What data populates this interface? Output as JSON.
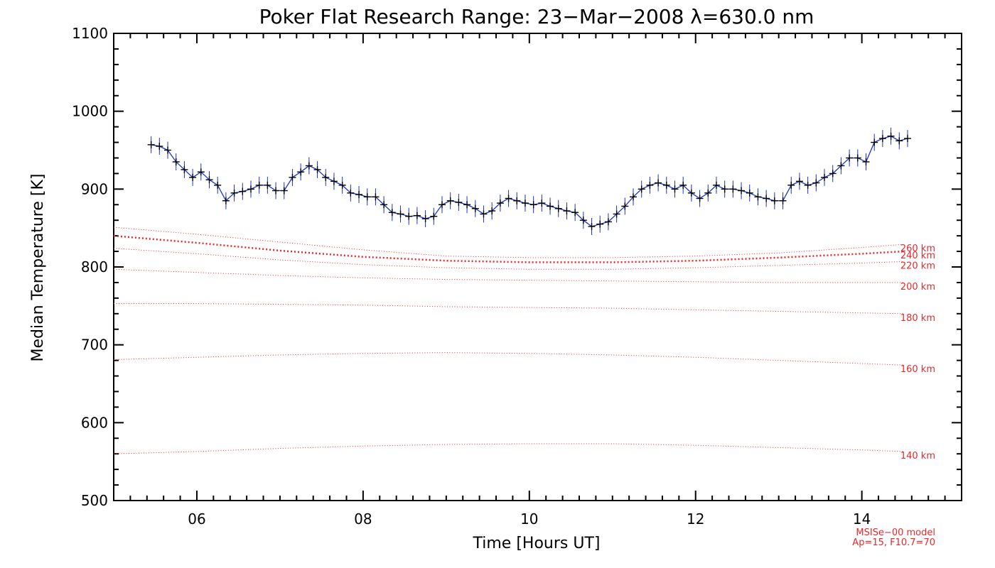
{
  "chart_data": {
    "type": "line",
    "title": "Poker Flat Research Range: 23−Mar−2008 λ=630.0 nm",
    "xlabel": "Time [Hours UT]",
    "ylabel": "Median Temperature [K]",
    "xlim": [
      5.0,
      15.2
    ],
    "ylim": [
      500,
      1100
    ],
    "x_ticks": [
      6,
      8,
      10,
      12,
      14
    ],
    "x_tick_labels": [
      "06",
      "08",
      "10",
      "12",
      "14"
    ],
    "y_ticks": [
      500,
      600,
      700,
      800,
      900,
      1000,
      1100
    ],
    "y_tick_labels": [
      "500",
      "600",
      "700",
      "800",
      "900",
      "1000",
      "1100"
    ],
    "grid": false,
    "colors": {
      "measured_line": "#1a33cc",
      "markers": "#000000",
      "model": "#e8282a",
      "axes": "#000000"
    },
    "measured": {
      "x": [
        5.45,
        5.55,
        5.65,
        5.75,
        5.85,
        5.95,
        6.05,
        6.15,
        6.25,
        6.35,
        6.45,
        6.55,
        6.65,
        6.75,
        6.85,
        6.95,
        7.05,
        7.15,
        7.25,
        7.35,
        7.45,
        7.55,
        7.65,
        7.75,
        7.85,
        7.95,
        8.05,
        8.15,
        8.25,
        8.35,
        8.45,
        8.55,
        8.65,
        8.75,
        8.85,
        8.95,
        9.05,
        9.15,
        9.25,
        9.35,
        9.45,
        9.55,
        9.65,
        9.75,
        9.85,
        9.95,
        10.05,
        10.15,
        10.25,
        10.35,
        10.45,
        10.55,
        10.65,
        10.75,
        10.85,
        10.95,
        11.05,
        11.15,
        11.25,
        11.35,
        11.45,
        11.55,
        11.65,
        11.75,
        11.85,
        11.95,
        12.05,
        12.15,
        12.25,
        12.35,
        12.45,
        12.55,
        12.65,
        12.75,
        12.85,
        12.95,
        13.05,
        13.15,
        13.25,
        13.35,
        13.45,
        13.55,
        13.65,
        13.75,
        13.85,
        13.95,
        14.05,
        14.15,
        14.25,
        14.35,
        14.45,
        14.55
      ],
      "y": [
        957,
        955,
        950,
        935,
        925,
        915,
        922,
        912,
        905,
        885,
        895,
        897,
        900,
        905,
        905,
        898,
        898,
        915,
        922,
        930,
        925,
        915,
        910,
        905,
        895,
        893,
        890,
        890,
        880,
        870,
        868,
        865,
        866,
        862,
        865,
        880,
        885,
        883,
        880,
        875,
        868,
        872,
        882,
        888,
        885,
        882,
        880,
        882,
        878,
        875,
        872,
        870,
        860,
        852,
        855,
        858,
        868,
        878,
        890,
        900,
        905,
        908,
        905,
        900,
        905,
        895,
        888,
        895,
        905,
        900,
        900,
        898,
        895,
        890,
        888,
        885,
        885,
        905,
        910,
        905,
        908,
        915,
        920,
        930,
        940,
        940,
        935,
        960,
        965,
        968,
        962,
        965
      ]
    },
    "model_label": "MSISe−00 model",
    "model_params": "Ap=15, F10.7=70",
    "model_series": [
      {
        "name": "260 km",
        "x": [
          5.0,
          6.0,
          7.0,
          8.0,
          9.0,
          10.0,
          11.0,
          12.0,
          13.0,
          14.0,
          14.5
        ],
        "y": [
          851,
          842,
          832,
          822,
          814,
          812,
          812,
          814,
          818,
          825,
          829
        ]
      },
      {
        "name": "240 km",
        "x": [
          5.0,
          6.0,
          7.0,
          8.0,
          9.0,
          10.0,
          11.0,
          12.0,
          13.0,
          14.0,
          14.5
        ],
        "y": [
          840,
          831,
          821,
          813,
          808,
          806,
          806,
          808,
          812,
          817,
          820
        ]
      },
      {
        "name": "220 km",
        "x": [
          5.0,
          6.0,
          7.0,
          8.0,
          9.0,
          10.0,
          11.0,
          12.0,
          13.0,
          14.0,
          14.5
        ],
        "y": [
          824,
          817,
          809,
          803,
          799,
          797,
          797,
          799,
          802,
          805,
          807
        ]
      },
      {
        "name": "200 km",
        "x": [
          5.0,
          6.0,
          7.0,
          8.0,
          9.0,
          10.0,
          11.0,
          12.0,
          13.0,
          14.0,
          14.5
        ],
        "y": [
          797,
          793,
          789,
          786,
          784,
          783,
          782,
          781,
          780,
          780,
          780
        ]
      },
      {
        "name": "180 km",
        "x": [
          5.0,
          6.0,
          7.0,
          8.0,
          9.0,
          10.0,
          11.0,
          12.0,
          13.0,
          14.0,
          14.5
        ],
        "y": [
          753,
          753,
          752,
          751,
          749,
          748,
          747,
          745,
          743,
          741,
          740
        ]
      },
      {
        "name": "160 km",
        "x": [
          5.0,
          6.0,
          7.0,
          8.0,
          9.0,
          10.0,
          11.0,
          12.0,
          13.0,
          14.0,
          14.5
        ],
        "y": [
          681,
          684,
          687,
          689,
          690,
          689,
          687,
          684,
          680,
          676,
          674
        ]
      },
      {
        "name": "140 km",
        "x": [
          5.0,
          6.0,
          7.0,
          8.0,
          9.0,
          10.0,
          11.0,
          12.0,
          13.0,
          14.0,
          14.5
        ],
        "y": [
          560,
          563,
          567,
          570,
          572,
          573,
          573,
          571,
          568,
          565,
          563
        ]
      }
    ]
  }
}
